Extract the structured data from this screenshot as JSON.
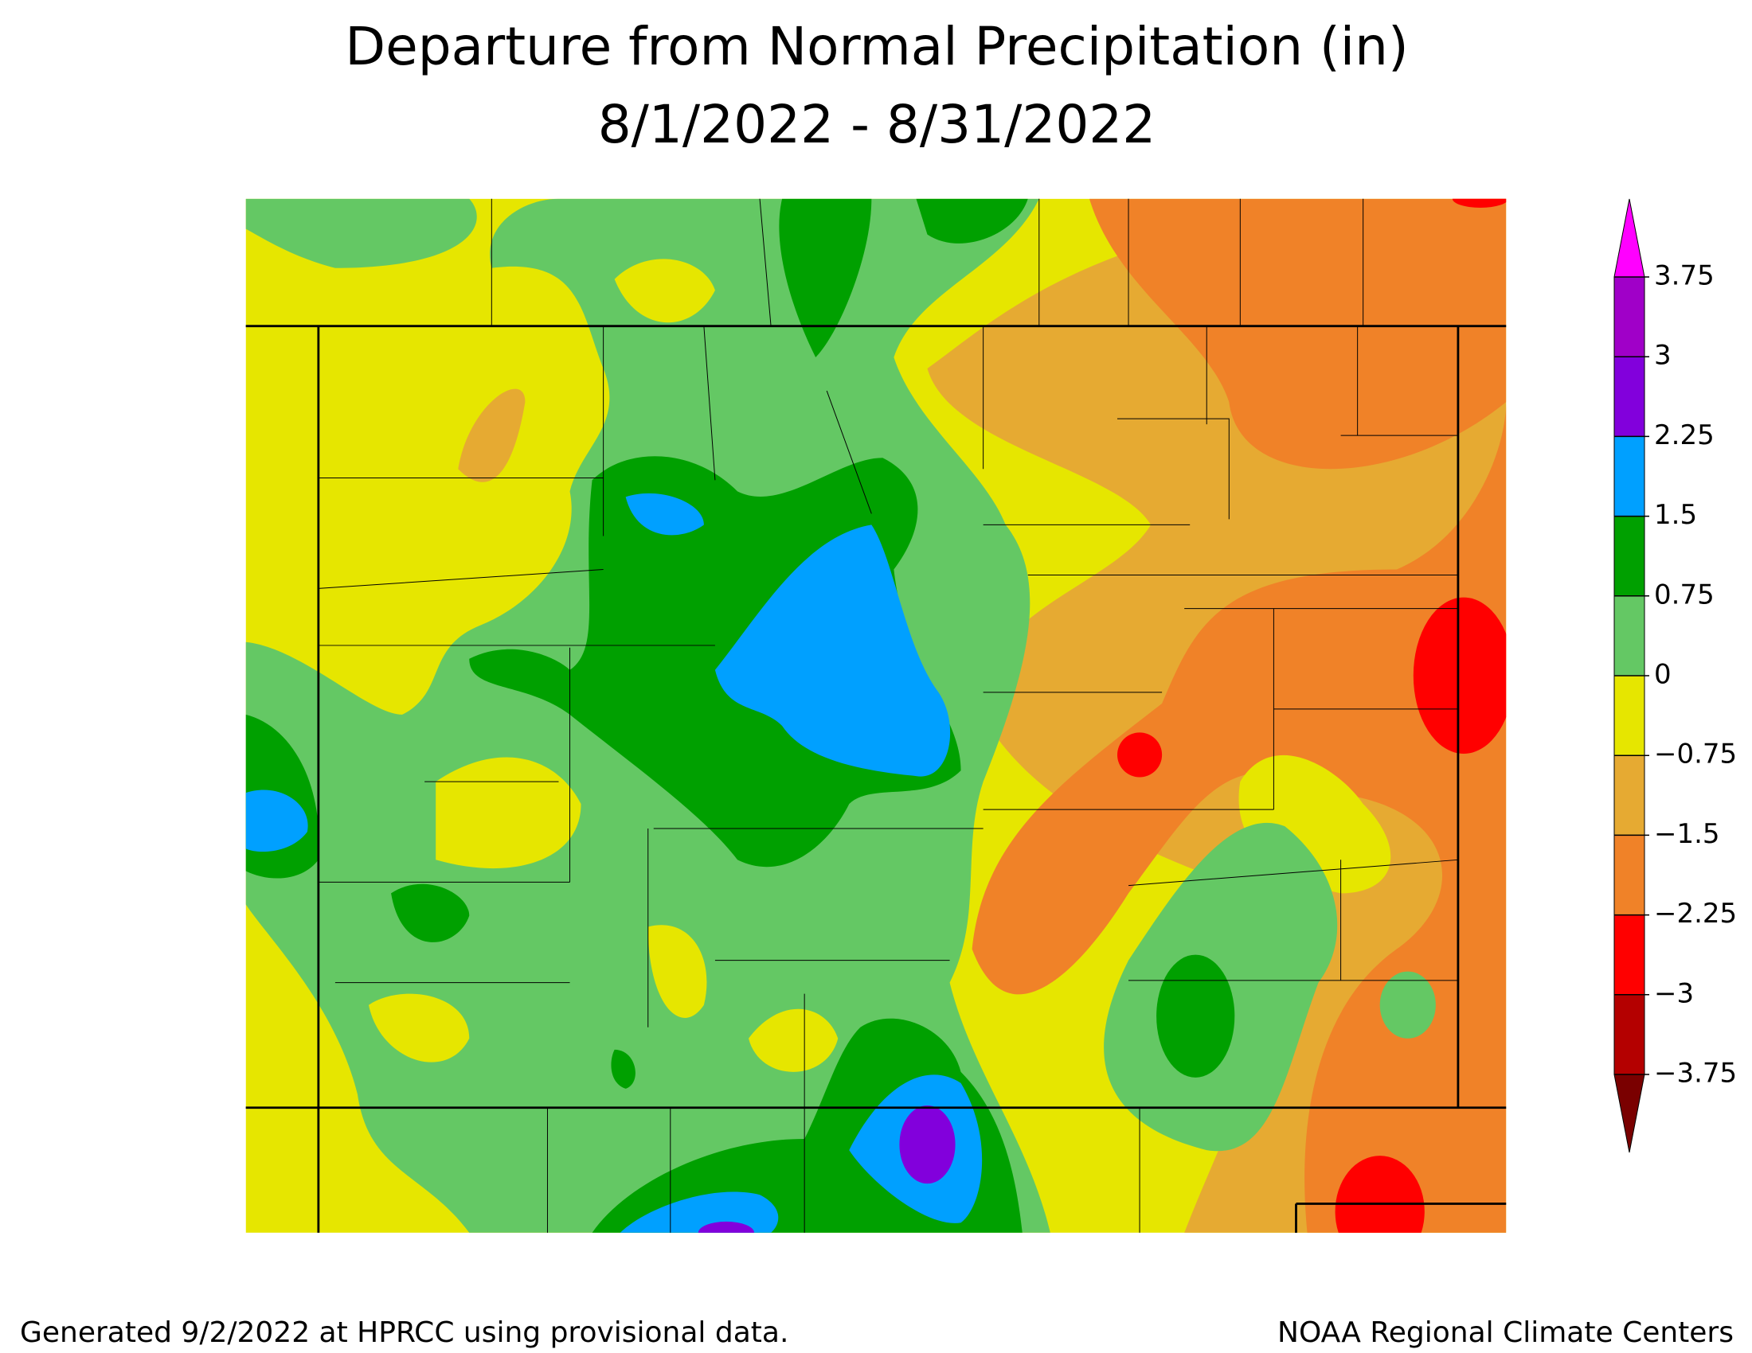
{
  "title": "Departure from Normal Precipitation (in)",
  "subtitle": "8/1/2022 - 8/31/2022",
  "footer_left": "Generated 9/2/2022 at HPRCC using provisional data.",
  "footer_right": "NOAA Regional Climate Centers",
  "legend": {
    "colors": [
      "#7a0000",
      "#b40000",
      "#ff0000",
      "#f08228",
      "#e6aa32",
      "#e6e600",
      "#64c864",
      "#00a000",
      "#00a0ff",
      "#8200dc",
      "#a000c8",
      "#ff00ff"
    ],
    "ticks": [
      {
        "value": -3.75,
        "label": "−3.75"
      },
      {
        "value": -3,
        "label": "−3"
      },
      {
        "value": -2.25,
        "label": "−2.25"
      },
      {
        "value": -1.5,
        "label": "−1.5"
      },
      {
        "value": -0.75,
        "label": "−0.75"
      },
      0,
      0.75,
      1.5,
      2.25,
      3,
      3.75
    ]
  }
}
